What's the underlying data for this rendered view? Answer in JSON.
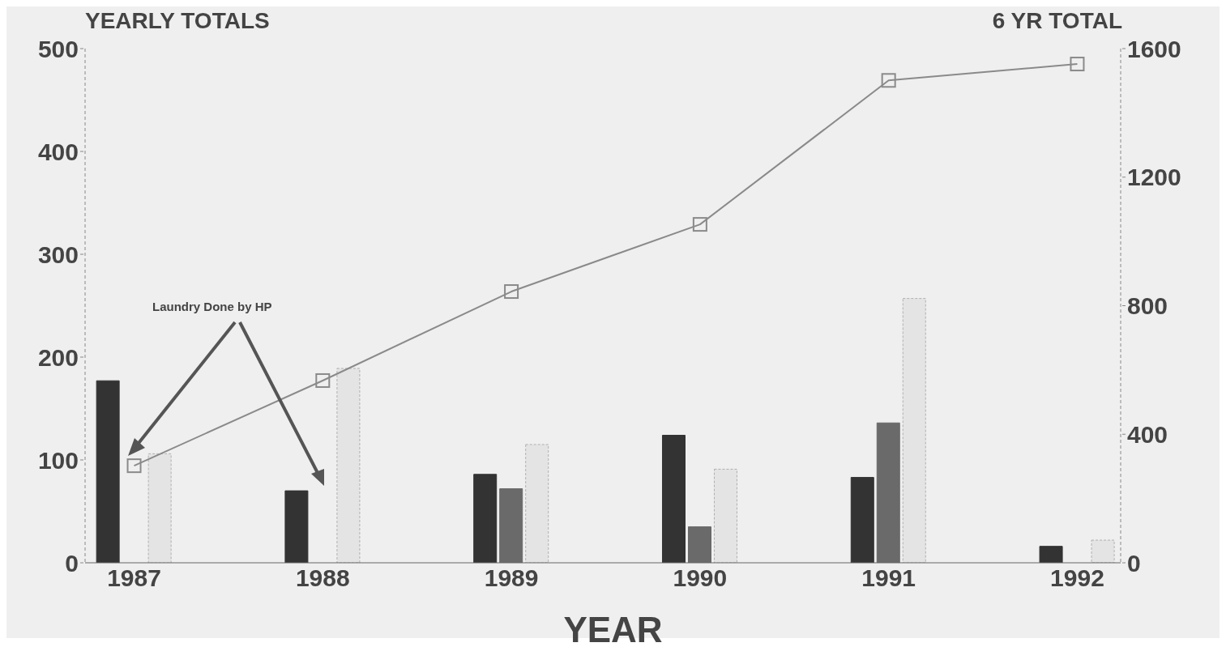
{
  "chart_data": {
    "type": "bar",
    "categories": [
      "1987",
      "1988",
      "1989",
      "1990",
      "1991",
      "1992"
    ],
    "series": [
      {
        "color": "#333333",
        "values": [
          177,
          70,
          86,
          124,
          83,
          16
        ]
      },
      {
        "color": "#6a6a6a",
        "values": [
          0,
          0,
          72,
          35,
          136,
          0
        ]
      },
      {
        "color": "#e4e4e4",
        "values": [
          106,
          189,
          115,
          91,
          257,
          22
        ]
      },
      {
        "type": "line",
        "axis": "y2",
        "color": "#8a8a8a",
        "marker": "square",
        "values": [
          302,
          567,
          844,
          1053,
          1501,
          1552
        ]
      }
    ],
    "ylabel": "YEARLY TOTALS",
    "y2label": "6 YR TOTAL",
    "xlabel": "YEAR",
    "ylim": [
      0,
      500
    ],
    "yticks": [
      0,
      100,
      200,
      300,
      400,
      500
    ],
    "y2lim": [
      0,
      1600
    ],
    "y2ticks": [
      0,
      400,
      800,
      1200,
      1600
    ],
    "annotations": [
      "Laundry Done by HP"
    ],
    "grid": false,
    "legend": false
  }
}
